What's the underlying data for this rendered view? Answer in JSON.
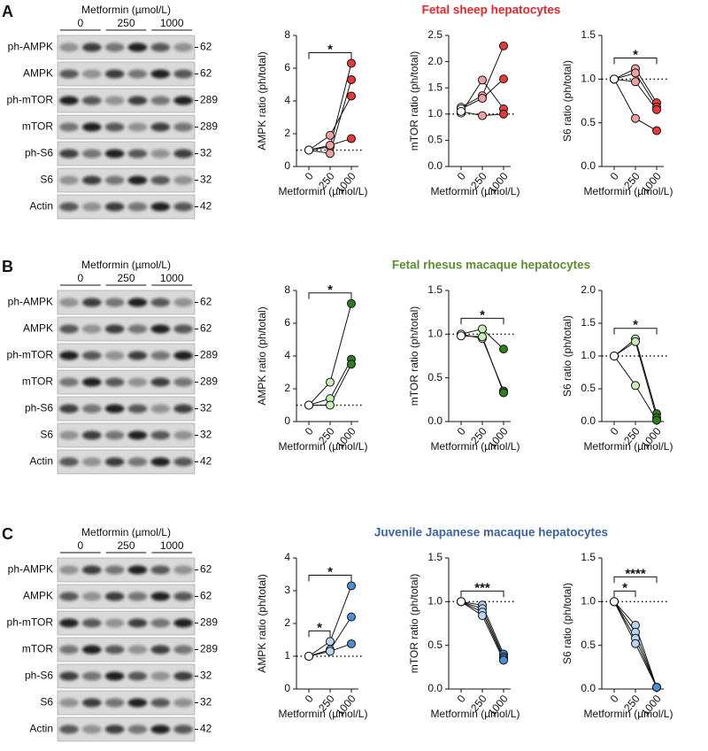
{
  "panels": [
    {
      "letter": "A",
      "title": "Fetal sheep hepatocytes",
      "title_color": "#e8262a",
      "blot": {
        "header": "Metformin (µmol/L)",
        "doses": [
          "0",
          "250",
          "1000"
        ],
        "bands": [
          {
            "name": "ph-AMPK",
            "kda": "62"
          },
          {
            "name": "AMPK",
            "kda": "62"
          },
          {
            "name": "ph-mTOR",
            "kda": "289"
          },
          {
            "name": "mTOR",
            "kda": "289"
          },
          {
            "name": "ph-S6",
            "kda": "32"
          },
          {
            "name": "S6",
            "kda": "32"
          },
          {
            "name": "Actin",
            "kda": "42"
          }
        ]
      }
    },
    {
      "letter": "B",
      "title": "Fetal rhesus macaque hepatocytes",
      "title_color": "#5a8f2e",
      "blot": {
        "header": "Metformin (µmol/L)",
        "doses": [
          "0",
          "250",
          "1000"
        ],
        "bands": [
          {
            "name": "ph-AMPK",
            "kda": "62"
          },
          {
            "name": "AMPK",
            "kda": "62"
          },
          {
            "name": "ph-mTOR",
            "kda": "289"
          },
          {
            "name": "mTOR",
            "kda": "289"
          },
          {
            "name": "ph-S6",
            "kda": "32"
          },
          {
            "name": "S6",
            "kda": "32"
          },
          {
            "name": "Actin",
            "kda": "42"
          }
        ]
      }
    },
    {
      "letter": "C",
      "title": "Juvenile Japanese macaque hepatocytes",
      "title_color": "#3b63a8",
      "blot": {
        "header": "Metformin (µmol/L)",
        "doses": [
          "0",
          "250",
          "1000"
        ],
        "bands": [
          {
            "name": "ph-AMPK",
            "kda": "62"
          },
          {
            "name": "AMPK",
            "kda": "62"
          },
          {
            "name": "ph-mTOR",
            "kda": "289"
          },
          {
            "name": "mTOR",
            "kda": "289"
          },
          {
            "name": "ph-S6",
            "kda": "32"
          },
          {
            "name": "S6",
            "kda": "32"
          },
          {
            "name": "Actin",
            "kda": "42"
          }
        ]
      }
    }
  ],
  "chart_data": [
    {
      "type": "line",
      "ylabel": "AMPK ratio (ph/total)",
      "xlabel": "Metformin (µmol/L)",
      "categories": [
        "0",
        "250",
        "1000"
      ],
      "marker_colors": [
        "#ffffff",
        "#f4a0a0",
        "#e8383c"
      ],
      "ylim": [
        0,
        8
      ],
      "yticks": [
        0,
        2,
        4,
        6,
        8
      ],
      "ref_line": 1,
      "series": [
        {
          "values": [
            1,
            1.2,
            6.3
          ]
        },
        {
          "values": [
            1,
            0.8,
            5.3
          ]
        },
        {
          "values": [
            1,
            1.9,
            4.3
          ]
        },
        {
          "values": [
            1,
            1.3,
            1.7
          ]
        }
      ],
      "annotations": [
        {
          "from": 0,
          "to": 2,
          "label": "*"
        }
      ]
    },
    {
      "type": "line",
      "ylabel": "mTOR ratio (ph/total)",
      "xlabel": "Metformin (µmol/L)",
      "categories": [
        "0",
        "250",
        "1000"
      ],
      "marker_colors": [
        "#ffffff",
        "#f4a0a0",
        "#e8383c"
      ],
      "ylim": [
        0,
        2.5
      ],
      "yticks": [
        {
          "value": 0,
          "label": "0.0"
        },
        0.5,
        {
          "value": 1,
          "label": "1.0"
        },
        1.5,
        {
          "value": 2,
          "label": "2.0"
        },
        2.5
      ],
      "ref_line": 1,
      "series": [
        {
          "values": [
            1.13,
            1.35,
            2.3
          ]
        },
        {
          "values": [
            1.02,
            1.65,
            1.1
          ]
        },
        {
          "values": [
            1.1,
            1.3,
            1.67
          ]
        },
        {
          "values": [
            1.05,
            0.97,
            1.0
          ]
        }
      ],
      "annotations": []
    },
    {
      "type": "line",
      "ylabel": "S6 ratio (ph/total)",
      "xlabel": "Metformin (µmol/L)",
      "categories": [
        "0",
        "250",
        "1000"
      ],
      "marker_colors": [
        "#ffffff",
        "#f4a0a0",
        "#e8383c"
      ],
      "ylim": [
        0,
        1.5
      ],
      "yticks": [
        {
          "value": 0,
          "label": "0.0"
        },
        0.5,
        {
          "value": 1,
          "label": "1.0"
        },
        1.5
      ],
      "ref_line": 1,
      "series": [
        {
          "values": [
            1,
            1.12,
            0.73
          ]
        },
        {
          "values": [
            1,
            1.07,
            0.68
          ]
        },
        {
          "values": [
            1,
            0.97,
            0.65
          ]
        },
        {
          "values": [
            1,
            0.55,
            0.41
          ]
        }
      ],
      "annotations": [
        {
          "from": 0,
          "to": 2,
          "label": "*"
        }
      ]
    },
    {
      "type": "line",
      "ylabel": "AMPK ratio (ph/total)",
      "xlabel": "Metformin (µmol/L)",
      "categories": [
        "0",
        "250",
        "1000"
      ],
      "marker_colors": [
        "#ffffff",
        "#c8efb8",
        "#2e7d1f"
      ],
      "ylim": [
        0,
        8
      ],
      "yticks": [
        0,
        2,
        4,
        6,
        8
      ],
      "ref_line": 1,
      "series": [
        {
          "values": [
            1,
            2.4,
            7.2
          ]
        },
        {
          "values": [
            1,
            1.4,
            3.8
          ]
        },
        {
          "values": [
            1,
            1.0,
            3.5
          ]
        }
      ],
      "annotations": [
        {
          "from": 0,
          "to": 2,
          "label": "*"
        }
      ]
    },
    {
      "type": "line",
      "ylabel": "mTOR ratio (ph/total)",
      "xlabel": "Metformin (µmol/L)",
      "categories": [
        "0",
        "250",
        "1000"
      ],
      "marker_colors": [
        "#ffffff",
        "#c8efb8",
        "#2e7d1f"
      ],
      "ylim": [
        0,
        1.5
      ],
      "yticks": [
        {
          "value": 0,
          "label": "0.0"
        },
        0.5,
        {
          "value": 1,
          "label": "1.0"
        },
        1.5
      ],
      "ref_line": 1,
      "series": [
        {
          "values": [
            1,
            1.06,
            0.83
          ]
        },
        {
          "values": [
            1,
            0.95,
            0.35
          ]
        },
        {
          "values": [
            0.98,
            0.97,
            0.33
          ]
        }
      ],
      "annotations": [
        {
          "from": 0,
          "to": 2,
          "label": "*"
        }
      ]
    },
    {
      "type": "line",
      "ylabel": "S6 ratio (ph/total)",
      "xlabel": "Metformin (µmol/L)",
      "categories": [
        "0",
        "250",
        "1000"
      ],
      "marker_colors": [
        "#ffffff",
        "#c8efb8",
        "#2e7d1f"
      ],
      "ylim": [
        0,
        2
      ],
      "yticks": [
        {
          "value": 0,
          "label": "0.0"
        },
        0.5,
        {
          "value": 1,
          "label": "1.0"
        },
        1.5,
        {
          "value": 2,
          "label": "2.0"
        }
      ],
      "ref_line": 1,
      "series": [
        {
          "values": [
            1,
            1.26,
            0.12
          ]
        },
        {
          "values": [
            1,
            1.22,
            0.06
          ]
        },
        {
          "values": [
            1,
            0.55,
            0.02
          ]
        }
      ],
      "annotations": [
        {
          "from": 0,
          "to": 2,
          "label": "*"
        }
      ]
    },
    {
      "type": "line",
      "ylabel": "AMPK ratio (ph/total)",
      "xlabel": "Metformin (µmol/L)",
      "categories": [
        "0",
        "250",
        "1000"
      ],
      "marker_colors": [
        "#ffffff",
        "#b9d5f3",
        "#4a8fd8"
      ],
      "ylim": [
        0,
        4
      ],
      "yticks": [
        0,
        1,
        2,
        3,
        4
      ],
      "ref_line": 1,
      "series": [
        {
          "values": [
            1,
            1.45,
            3.15
          ]
        },
        {
          "values": [
            1,
            1.2,
            2.2
          ]
        },
        {
          "values": [
            1,
            1.15,
            1.38
          ]
        }
      ],
      "annotations": [
        {
          "from": 0,
          "to": 1,
          "label": "*"
        },
        {
          "from": 0,
          "to": 2,
          "label": "*"
        }
      ]
    },
    {
      "type": "line",
      "ylabel": "mTOR ratio (ph/total)",
      "xlabel": "Metformin (µmol/L)",
      "categories": [
        "0",
        "250",
        "1000"
      ],
      "marker_colors": [
        "#ffffff",
        "#b9d5f3",
        "#4a8fd8"
      ],
      "ylim": [
        0,
        1.5
      ],
      "yticks": [
        {
          "value": 0,
          "label": "0.0"
        },
        0.5,
        {
          "value": 1,
          "label": "1.0"
        },
        1.5
      ],
      "ref_line": 1,
      "series": [
        {
          "values": [
            1,
            0.96,
            0.4
          ]
        },
        {
          "values": [
            1,
            0.92,
            0.37
          ]
        },
        {
          "values": [
            1,
            0.88,
            0.35
          ]
        },
        {
          "values": [
            1,
            0.84,
            0.33
          ]
        }
      ],
      "annotations": [
        {
          "from": 0,
          "to": 2,
          "label": "***"
        }
      ]
    },
    {
      "type": "line",
      "ylabel": "S6 ratio (ph/total)",
      "xlabel": "Metformin (µmol/L)",
      "categories": [
        "0",
        "250",
        "1000"
      ],
      "marker_colors": [
        "#ffffff",
        "#b9d5f3",
        "#4a8fd8"
      ],
      "ylim": [
        0,
        1.5
      ],
      "yticks": [
        {
          "value": 0,
          "label": "0.0"
        },
        0.5,
        {
          "value": 1,
          "label": "1.0"
        },
        1.5
      ],
      "ref_line": 1,
      "series": [
        {
          "values": [
            1,
            0.73,
            0.02
          ]
        },
        {
          "values": [
            1,
            0.65,
            0.02
          ]
        },
        {
          "values": [
            1,
            0.58,
            0.02
          ]
        },
        {
          "values": [
            1,
            0.52,
            0.02
          ]
        }
      ],
      "annotations": [
        {
          "from": 0,
          "to": 1,
          "label": "*"
        },
        {
          "from": 0,
          "to": 2,
          "label": "****"
        }
      ]
    }
  ]
}
